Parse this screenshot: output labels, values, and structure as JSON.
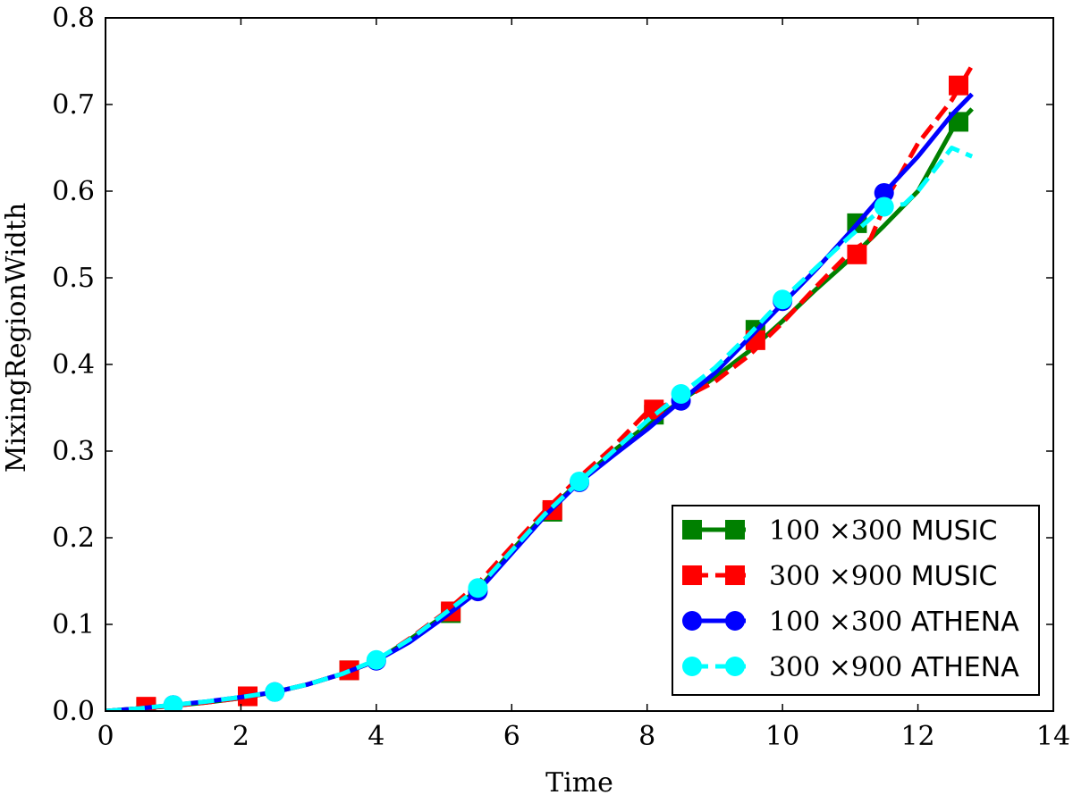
{
  "chart_data": {
    "type": "line",
    "title": "",
    "xlabel": "Time",
    "ylabel": "MixingRegionWidth",
    "xlim": [
      0,
      14
    ],
    "ylim": [
      0,
      0.8
    ],
    "x_ticks": [
      0,
      2,
      4,
      6,
      8,
      10,
      12,
      14
    ],
    "y_ticks": [
      0.0,
      0.1,
      0.2,
      0.3,
      0.4,
      0.5,
      0.6,
      0.7,
      0.8
    ],
    "x_tick_labels": [
      "0",
      "2",
      "4",
      "6",
      "8",
      "10",
      "12",
      "14"
    ],
    "y_tick_labels": [
      "0.0",
      "0.1",
      "0.2",
      "0.3",
      "0.4",
      "0.5",
      "0.6",
      "0.7",
      "0.8"
    ],
    "grid": false,
    "legend_position": "bottom-right",
    "series": [
      {
        "name": "100 ×300 MUSIC",
        "legend_num": "100 ×300",
        "legend_code": "MUSIC",
        "color": "#008000",
        "dash": "solid",
        "marker": "square",
        "x": [
          0,
          0.5,
          1.0,
          1.5,
          2.0,
          2.5,
          3.0,
          3.5,
          4.0,
          4.5,
          5.0,
          5.5,
          6.0,
          6.5,
          7.0,
          7.5,
          8.0,
          8.5,
          9.0,
          9.5,
          10.0,
          10.5,
          11.0,
          11.5,
          12.0,
          12.5,
          12.8
        ],
        "y": [
          0.0,
          0.003,
          0.006,
          0.01,
          0.015,
          0.022,
          0.031,
          0.043,
          0.058,
          0.083,
          0.11,
          0.14,
          0.185,
          0.228,
          0.265,
          0.3,
          0.33,
          0.358,
          0.385,
          0.415,
          0.45,
          0.487,
          0.522,
          0.56,
          0.6,
          0.67,
          0.695
        ],
        "marker_x": [
          0.6,
          2.1,
          3.6,
          5.1,
          6.6,
          8.1,
          9.6,
          11.1,
          12.6
        ],
        "marker_y": [
          0.004,
          0.017,
          0.047,
          0.113,
          0.23,
          0.342,
          0.44,
          0.563,
          0.68
        ]
      },
      {
        "name": "300 ×900 MUSIC",
        "legend_num": "300 ×900",
        "legend_code": "MUSIC",
        "color": "#ff0000",
        "dash": "dashed",
        "marker": "square",
        "x": [
          0,
          0.5,
          1.0,
          1.5,
          2.0,
          2.5,
          3.0,
          3.5,
          4.0,
          4.5,
          5.0,
          5.5,
          6.0,
          6.5,
          7.0,
          7.5,
          8.0,
          8.5,
          9.0,
          9.5,
          10.0,
          10.5,
          11.0,
          11.3,
          11.6,
          12.0,
          12.5,
          12.8
        ],
        "y": [
          0.0,
          0.003,
          0.006,
          0.01,
          0.015,
          0.022,
          0.031,
          0.043,
          0.058,
          0.084,
          0.113,
          0.147,
          0.19,
          0.232,
          0.27,
          0.305,
          0.345,
          0.36,
          0.38,
          0.41,
          0.448,
          0.49,
          0.53,
          0.545,
          0.6,
          0.655,
          0.705,
          0.745
        ],
        "marker_x": [
          0.6,
          2.1,
          3.6,
          5.1,
          6.6,
          8.1,
          9.6,
          11.1,
          12.6
        ],
        "marker_y": [
          0.005,
          0.017,
          0.047,
          0.115,
          0.232,
          0.348,
          0.428,
          0.527,
          0.722
        ]
      },
      {
        "name": "100 ×300 ATHENA",
        "legend_num": "100 ×300",
        "legend_code": "ATHENA",
        "color": "#0000ff",
        "dash": "solid",
        "marker": "circle",
        "x": [
          0,
          0.5,
          1.0,
          1.5,
          2.0,
          2.5,
          3.0,
          3.5,
          4.0,
          4.5,
          5.0,
          5.5,
          6.0,
          6.5,
          7.0,
          7.5,
          8.0,
          8.5,
          9.0,
          9.5,
          10.0,
          10.5,
          11.0,
          11.5,
          12.0,
          12.5,
          12.8
        ],
        "y": [
          0.0,
          0.003,
          0.007,
          0.011,
          0.016,
          0.022,
          0.031,
          0.043,
          0.058,
          0.08,
          0.108,
          0.138,
          0.182,
          0.226,
          0.264,
          0.295,
          0.325,
          0.358,
          0.39,
          0.43,
          0.47,
          0.51,
          0.553,
          0.598,
          0.64,
          0.688,
          0.712
        ],
        "marker_x": [
          1.0,
          2.5,
          4.0,
          5.5,
          7.0,
          8.5,
          10.0,
          11.5
        ],
        "marker_y": [
          0.007,
          0.022,
          0.058,
          0.138,
          0.264,
          0.358,
          0.473,
          0.598
        ]
      },
      {
        "name": "300 ×900 ATHENA",
        "legend_num": "300 ×900",
        "legend_code": "ATHENA",
        "color": "#00ffff",
        "dash": "dashed",
        "marker": "circle",
        "x": [
          0,
          0.5,
          1.0,
          1.5,
          2.0,
          2.5,
          3.0,
          3.5,
          4.0,
          4.5,
          5.0,
          5.5,
          6.0,
          6.5,
          7.0,
          7.5,
          8.0,
          8.5,
          9.0,
          9.5,
          10.0,
          10.5,
          11.0,
          11.5,
          11.8,
          12.0,
          12.5,
          12.8
        ],
        "y": [
          0.0,
          0.003,
          0.007,
          0.011,
          0.016,
          0.022,
          0.031,
          0.043,
          0.059,
          0.083,
          0.112,
          0.142,
          0.185,
          0.228,
          0.265,
          0.3,
          0.335,
          0.366,
          0.396,
          0.434,
          0.475,
          0.512,
          0.548,
          0.582,
          0.585,
          0.6,
          0.65,
          0.64
        ],
        "marker_x": [
          1.0,
          2.5,
          4.0,
          5.5,
          7.0,
          8.5,
          10.0,
          11.5
        ],
        "marker_y": [
          0.007,
          0.022,
          0.059,
          0.142,
          0.265,
          0.366,
          0.475,
          0.582
        ]
      }
    ]
  }
}
